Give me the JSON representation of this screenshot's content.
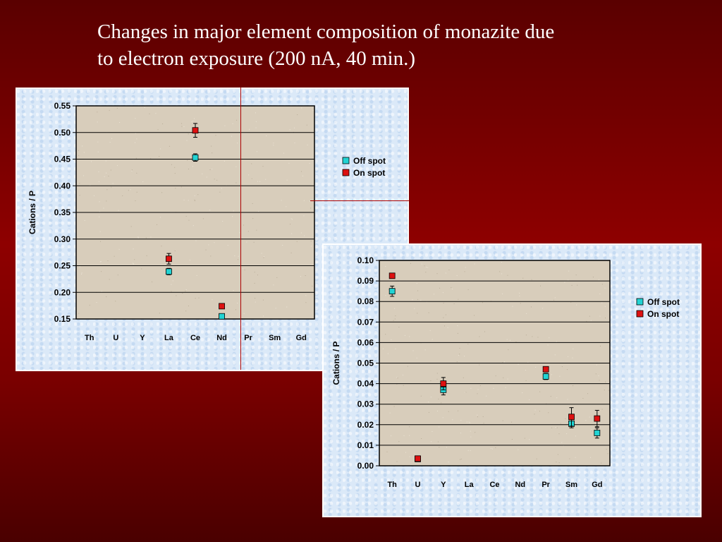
{
  "slide": {
    "title_line1": "Changes in major element composition of monazite due",
    "title_line2": "to electron exposure (200 nA, 40 min.)"
  },
  "colors": {
    "background": "#7a0000",
    "plot_area": "#d8cdbb",
    "off_spot": "#22d3d3",
    "on_spot": "#dd1111"
  },
  "chart_data": [
    {
      "type": "scatter",
      "title": "",
      "xlabel": "",
      "ylabel": "Cations / P",
      "categories": [
        "Th",
        "U",
        "Y",
        "La",
        "Ce",
        "Nd",
        "Pr",
        "Sm",
        "Gd"
      ],
      "ylim": [
        0.15,
        0.55
      ],
      "yticks": [
        "0.15",
        "0.20",
        "0.25",
        "0.30",
        "0.35",
        "0.40",
        "0.45",
        "0.50",
        "0.55"
      ],
      "grid": "horizontal",
      "legend_position": "right",
      "error_bars": true,
      "series": [
        {
          "name": "Off spot",
          "color": "#22d3d3",
          "points": [
            {
              "x": "La",
              "y": 0.239,
              "err": 0.006
            },
            {
              "x": "Ce",
              "y": 0.453,
              "err": 0.007
            },
            {
              "x": "Nd",
              "y": 0.155,
              "err": 0.004
            }
          ]
        },
        {
          "name": "On spot",
          "color": "#dd1111",
          "points": [
            {
              "x": "La",
              "y": 0.263,
              "err": 0.01
            },
            {
              "x": "Ce",
              "y": 0.504,
              "err": 0.013
            },
            {
              "x": "Nd",
              "y": 0.174,
              "err": 0.003
            }
          ]
        }
      ]
    },
    {
      "type": "scatter",
      "title": "",
      "xlabel": "",
      "ylabel": "Cations / P",
      "categories": [
        "Th",
        "U",
        "Y",
        "La",
        "Ce",
        "Nd",
        "Pr",
        "Sm",
        "Gd"
      ],
      "ylim": [
        0.0,
        0.1
      ],
      "yticks": [
        "0.00",
        "0.01",
        "0.02",
        "0.03",
        "0.04",
        "0.05",
        "0.06",
        "0.07",
        "0.08",
        "0.09",
        "0.10"
      ],
      "grid": "horizontal",
      "legend_position": "right",
      "error_bars": true,
      "series": [
        {
          "name": "Off spot",
          "color": "#22d3d3",
          "points": [
            {
              "x": "Th",
              "y": 0.085,
              "err": 0.0025
            },
            {
              "x": "U",
              "y": 0.0033,
              "err": 0.0005
            },
            {
              "x": "Y",
              "y": 0.037,
              "err": 0.0025
            },
            {
              "x": "Pr",
              "y": 0.0435,
              "err": 0.0015
            },
            {
              "x": "Sm",
              "y": 0.0205,
              "err": 0.002
            },
            {
              "x": "Gd",
              "y": 0.016,
              "err": 0.0025
            }
          ]
        },
        {
          "name": "On spot",
          "color": "#dd1111",
          "points": [
            {
              "x": "Th",
              "y": 0.0925,
              "err": 0.001
            },
            {
              "x": "U",
              "y": 0.0035,
              "err": 0.0005
            },
            {
              "x": "Y",
              "y": 0.04,
              "err": 0.003
            },
            {
              "x": "Pr",
              "y": 0.047,
              "err": 0.0005
            },
            {
              "x": "Sm",
              "y": 0.0238,
              "err": 0.0045
            },
            {
              "x": "Gd",
              "y": 0.023,
              "err": 0.004
            }
          ]
        }
      ]
    }
  ]
}
